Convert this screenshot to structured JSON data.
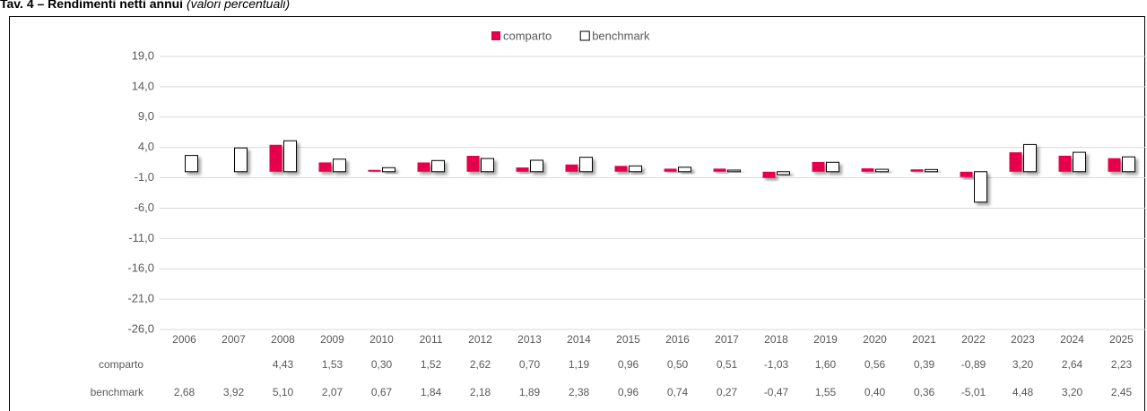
{
  "chart_data": {
    "type": "bar",
    "title": "Tav. 4 – Rendimenti netti annui",
    "subtitle": "(valori percentuali)",
    "categories": [
      "2006",
      "2007",
      "2008",
      "2009",
      "2010",
      "2011",
      "2012",
      "2013",
      "2014",
      "2015",
      "2016",
      "2017",
      "2018",
      "2019",
      "2020",
      "2021",
      "2022",
      "2023",
      "2024",
      "2025"
    ],
    "series": [
      {
        "name": "comparto",
        "color": "#e6004c",
        "values": [
          null,
          null,
          4.43,
          1.53,
          0.3,
          1.52,
          2.62,
          0.7,
          1.19,
          0.96,
          0.5,
          0.51,
          -1.03,
          1.6,
          0.56,
          0.39,
          -0.89,
          3.2,
          2.64,
          2.23
        ],
        "value_labels": [
          null,
          null,
          "4,43",
          "1,53",
          "0,30",
          "1,52",
          "2,62",
          "0,70",
          "1,19",
          "0,96",
          "0,50",
          "0,51",
          "-1,03",
          "1,60",
          "0,56",
          "0,39",
          "-0,89",
          "3,20",
          "2,64",
          "2,23"
        ]
      },
      {
        "name": "benchmark",
        "color": "#ffffff",
        "values": [
          2.68,
          3.92,
          5.1,
          2.07,
          0.67,
          1.84,
          2.18,
          1.89,
          2.38,
          0.96,
          0.74,
          0.27,
          -0.47,
          1.55,
          0.4,
          0.36,
          -5.01,
          4.48,
          3.2,
          2.45
        ],
        "value_labels": [
          "2,68",
          "3,92",
          "5,10",
          "2,07",
          "0,67",
          "1,84",
          "2,18",
          "1,89",
          "2,38",
          "0,96",
          "0,74",
          "0,27",
          "-0,47",
          "1,55",
          "0,40",
          "0,36",
          "-5,01",
          "4,48",
          "3,20",
          "2,45"
        ]
      }
    ],
    "ylim": [
      -26,
      19
    ],
    "yticks": [
      {
        "value": 19,
        "label": "19,0"
      },
      {
        "value": 14,
        "label": "14,0"
      },
      {
        "value": 9,
        "label": "9,0"
      },
      {
        "value": 4,
        "label": "4,0"
      },
      {
        "value": -1,
        "label": "-1,0"
      },
      {
        "value": -6,
        "label": "-6,0"
      },
      {
        "value": -11,
        "label": "-11,0"
      },
      {
        "value": -16,
        "label": "-16,0"
      },
      {
        "value": -21,
        "label": "-21,0"
      },
      {
        "value": -26,
        "label": "-26,0"
      }
    ],
    "grid": true,
    "legend": "top"
  }
}
